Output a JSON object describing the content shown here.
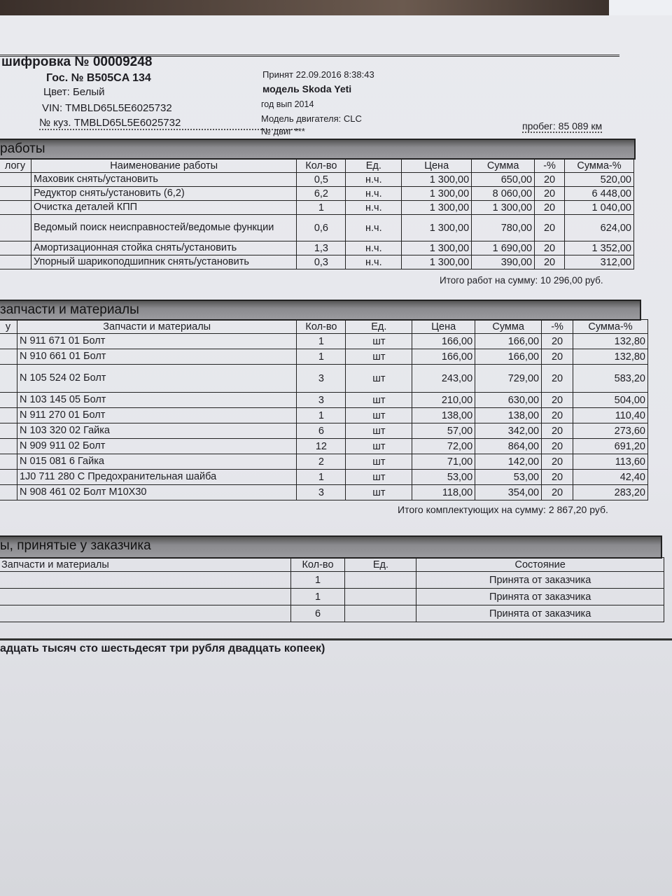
{
  "header": {
    "title": "шифровка № 00009248",
    "plate": "Гос. № B505CA 134",
    "color": "Цвет: Белый",
    "vin": "VIN: TMBLD65L5E6025732",
    "body_no": "№ куз. TMBLD65L5E6025732",
    "accepted": "Принят 22.09.2016 8:38:43",
    "model": "модель Skoda Yeti",
    "year": "год вып 2014",
    "engine_model": "Модель двигателя: CLC",
    "engine_no": "№ двиг ***",
    "mileage": "пробег: 85 089 км"
  },
  "works": {
    "title": "работы",
    "columns": [
      "логу",
      "Наименование работы",
      "Кол-во",
      "Ед.",
      "Цена",
      "Сумма",
      "-%",
      "Сумма-%"
    ],
    "rows": [
      [
        "",
        "Маховик снять/установить",
        "0,5",
        "н.ч.",
        "1 300,00",
        "650,00",
        "20",
        "520,00"
      ],
      [
        "",
        "Редуктор снять/установить (6,2)",
        "6,2",
        "н.ч.",
        "1 300,00",
        "8 060,00",
        "20",
        "6 448,00"
      ],
      [
        "",
        "Очистка деталей КПП",
        "1",
        "н.ч.",
        "1 300,00",
        "1 300,00",
        "20",
        "1 040,00"
      ],
      [
        "",
        "Ведомый поиск неисправностей/ведомые функции",
        "0,6",
        "н.ч.",
        "1 300,00",
        "780,00",
        "20",
        "624,00"
      ],
      [
        "",
        "Амортизационная стойка снять/установить",
        "1,3",
        "н.ч.",
        "1 300,00",
        "1 690,00",
        "20",
        "1 352,00"
      ],
      [
        "",
        "Упорный шарикоподшипник снять/установить",
        "0,3",
        "н.ч.",
        "1 300,00",
        "390,00",
        "20",
        "312,00"
      ]
    ],
    "total": "Итого работ на сумму: 10 296,00 руб."
  },
  "parts": {
    "title": "запчасти и материалы",
    "columns": [
      "у",
      "Запчасти и материалы",
      "Кол-во",
      "Ед.",
      "Цена",
      "Сумма",
      "-%",
      "Сумма-%"
    ],
    "rows": [
      [
        "",
        "N 911 671 01  Болт",
        "1",
        "шт",
        "166,00",
        "166,00",
        "20",
        "132,80"
      ],
      [
        "",
        "N 910 661 01  Болт",
        "1",
        "шт",
        "166,00",
        "166,00",
        "20",
        "132,80"
      ],
      [
        "",
        "N 105 524 02 Болт",
        "3",
        "шт",
        "243,00",
        "729,00",
        "20",
        "583,20"
      ],
      [
        "",
        "N 103 145 05  Болт",
        "3",
        "шт",
        "210,00",
        "630,00",
        "20",
        "504,00"
      ],
      [
        "",
        "N 911 270 01 Болт",
        "1",
        "шт",
        "138,00",
        "138,00",
        "20",
        "110,40"
      ],
      [
        "",
        "N 103 320 02  Гайка",
        "6",
        "шт",
        "57,00",
        "342,00",
        "20",
        "273,60"
      ],
      [
        "",
        "N 909 911 02 Болт",
        "12",
        "шт",
        "72,00",
        "864,00",
        "20",
        "691,20"
      ],
      [
        "",
        "N 015 081 6 Гайка",
        "2",
        "шт",
        "71,00",
        "142,00",
        "20",
        "113,60"
      ],
      [
        "",
        "1J0 711 280 C Предохранительная шайба",
        "1",
        "шт",
        "53,00",
        "53,00",
        "20",
        "42,40"
      ],
      [
        "",
        "N 908 461 02  Болт M10X30",
        "3",
        "шт",
        "118,00",
        "354,00",
        "20",
        "283,20"
      ]
    ],
    "total": "Итого комплектующих на сумму: 2 867,20 руб."
  },
  "customer_parts": {
    "title": "ы, принятые у заказчика",
    "columns": [
      "Запчасти и материалы",
      "Кол-во",
      "Ед.",
      "Состояние"
    ],
    "rows": [
      [
        "",
        "1",
        "",
        "Принята от заказчика"
      ],
      [
        "",
        "1",
        "",
        "Принята от заказчика"
      ],
      [
        "",
        "6",
        "",
        "Принята от заказчика"
      ]
    ]
  },
  "amount_words": "адцать тысяч сто шестьдесят три рубля двадцать копеек)"
}
